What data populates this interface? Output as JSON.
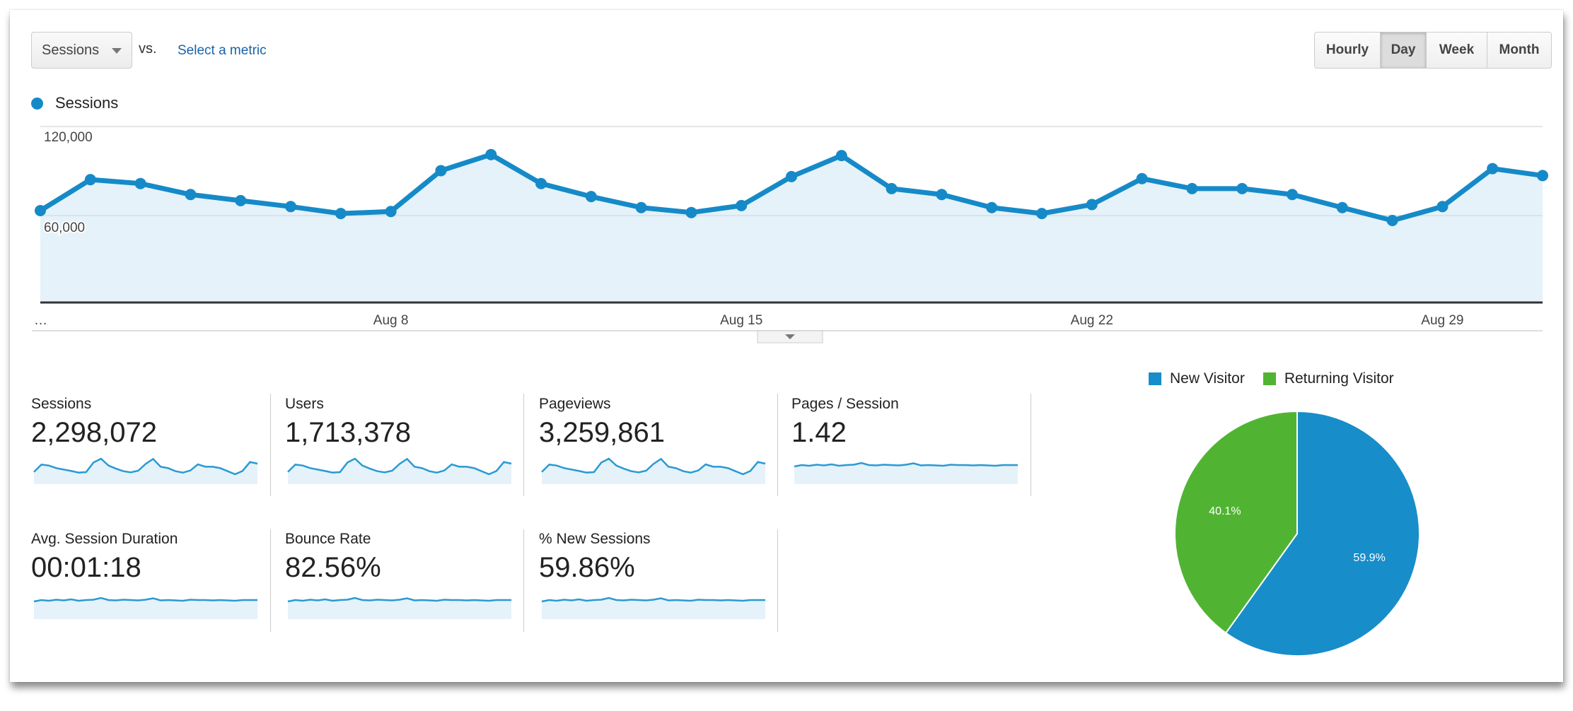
{
  "toolbar": {
    "metric_select": "Sessions",
    "vs_label": "vs.",
    "compare_link": "Select a metric",
    "intervals": [
      "Hourly",
      "Day",
      "Week",
      "Month"
    ],
    "active_interval": "Day"
  },
  "chart_data": [
    {
      "type": "area",
      "legend": [
        "Sessions"
      ],
      "series": [
        {
          "name": "Sessions",
          "color": "#168ac8",
          "values": [
            63400,
            84800,
            82100,
            74500,
            70300,
            66200,
            61400,
            62800,
            91000,
            102100,
            82100,
            73100,
            65500,
            62100,
            66900,
            86900,
            101400,
            78600,
            74500,
            65500,
            61400,
            67600,
            85500,
            78600,
            78600,
            74500,
            65500,
            56600,
            66200,
            92400,
            87600
          ]
        }
      ],
      "x_start_label": "…",
      "x_tick_labels": [
        {
          "index": 7,
          "label": "Aug 8"
        },
        {
          "index": 14,
          "label": "Aug 15"
        },
        {
          "index": 21,
          "label": "Aug 22"
        },
        {
          "index": 28,
          "label": "Aug 29"
        }
      ],
      "y_ticks": [
        {
          "value": 120000,
          "label": "120,000"
        },
        {
          "value": 60000,
          "label": "60,000"
        }
      ],
      "ylim": [
        0,
        120000
      ],
      "grid": true
    },
    {
      "type": "pie",
      "legend_placement": "top",
      "slices": [
        {
          "name": "New Visitor",
          "value": 59.9,
          "label": "59.9%",
          "color": "#178dc9"
        },
        {
          "name": "Returning Visitor",
          "value": 40.1,
          "label": "40.1%",
          "color": "#50b432"
        }
      ]
    }
  ],
  "scorecards": [
    {
      "label": "Sessions",
      "value": "2,298,072",
      "trend": "sessions"
    },
    {
      "label": "Users",
      "value": "1,713,378",
      "trend": "sessions"
    },
    {
      "label": "Pageviews",
      "value": "3,259,861",
      "trend": "sessions"
    },
    {
      "label": "Pages / Session",
      "value": "1.42",
      "trend": "flat"
    },
    {
      "label": "Avg. Session Duration",
      "value": "00:01:18",
      "trend": "flat"
    },
    {
      "label": "Bounce Rate",
      "value": "82.56%",
      "trend": "flat"
    },
    {
      "label": "% New Sessions",
      "value": "59.86%",
      "trend": "flat"
    }
  ]
}
